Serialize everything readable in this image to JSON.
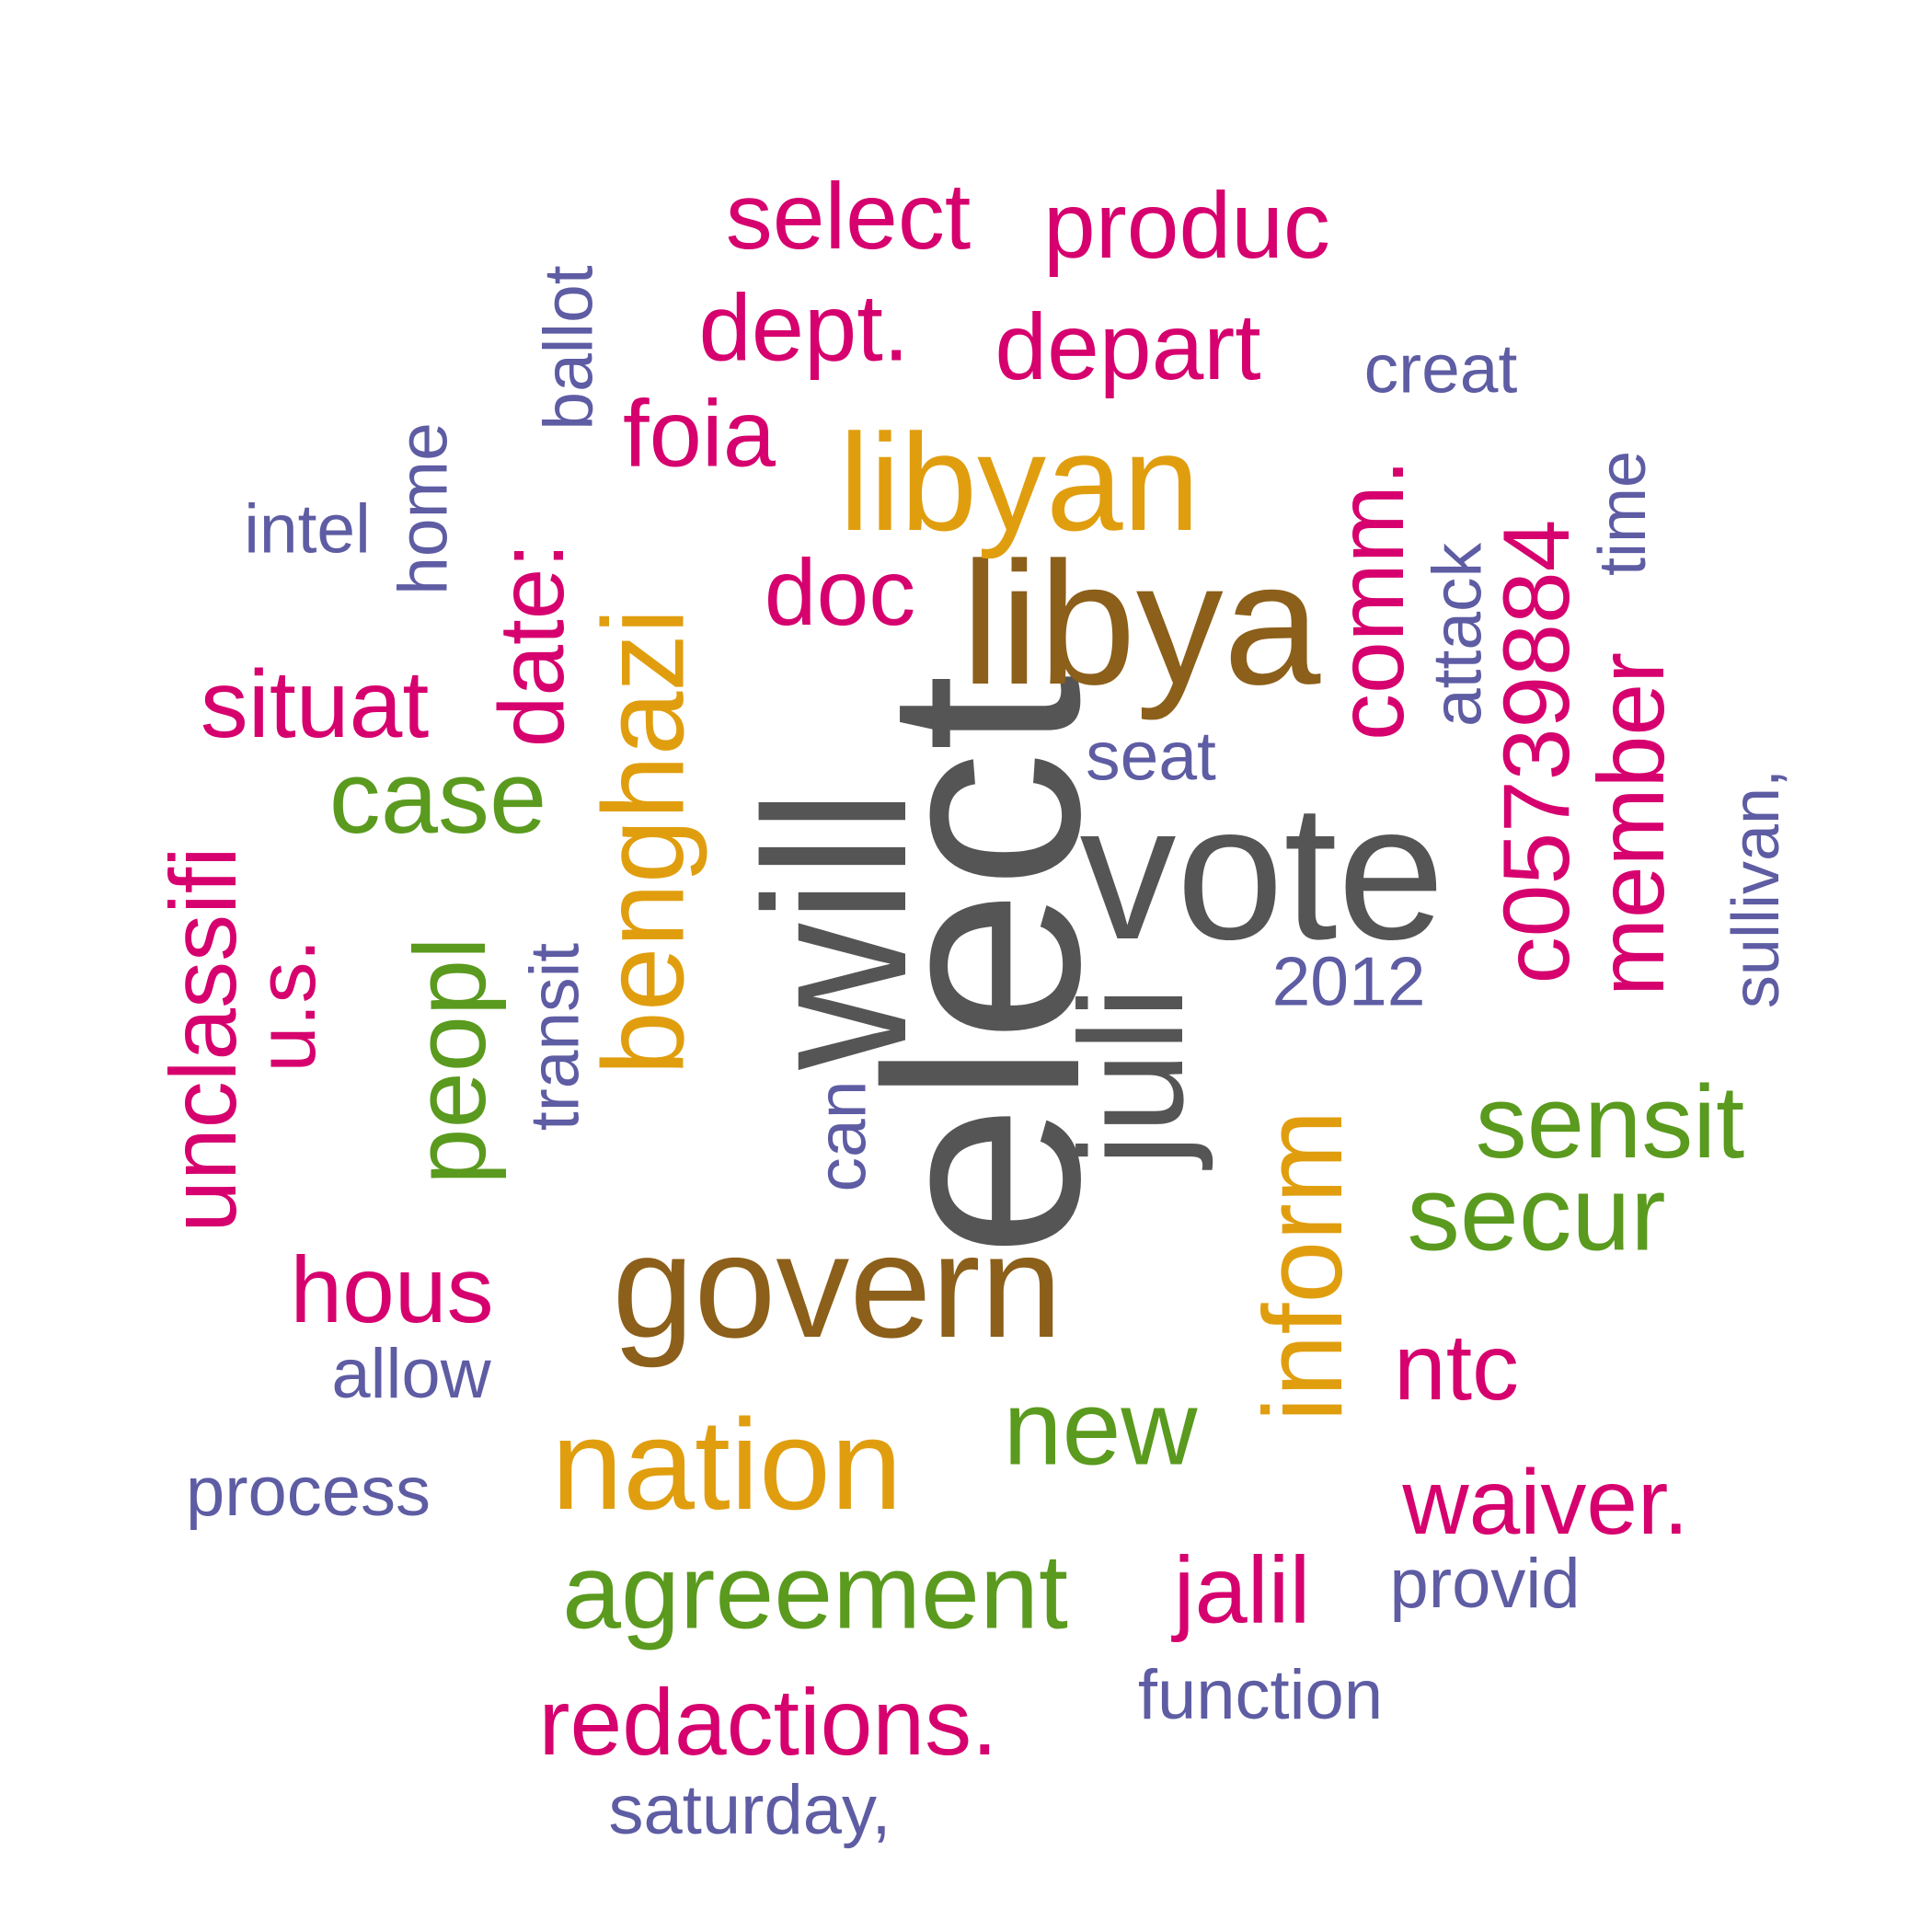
{
  "colors": {
    "dark_gray": "#555555",
    "brown": "#8C5F1A",
    "gold": "#E09E0F",
    "green": "#5A9A1E",
    "magenta": "#D6006E",
    "purple": "#5E5CA3"
  },
  "words": [
    {
      "text": "elect",
      "group": "dark_gray"
    },
    {
      "text": "will",
      "group": "dark_gray"
    },
    {
      "text": "vote",
      "group": "dark_gray"
    },
    {
      "text": "juli",
      "group": "dark_gray"
    },
    {
      "text": "libya",
      "group": "brown"
    },
    {
      "text": "govern",
      "group": "brown"
    },
    {
      "text": "libyan",
      "group": "gold"
    },
    {
      "text": "benghazi",
      "group": "gold"
    },
    {
      "text": "nation",
      "group": "gold"
    },
    {
      "text": "inform",
      "group": "gold"
    },
    {
      "text": "case",
      "group": "green"
    },
    {
      "text": "peopl",
      "group": "green"
    },
    {
      "text": "agreement",
      "group": "green"
    },
    {
      "text": "new",
      "group": "green"
    },
    {
      "text": "sensit",
      "group": "green"
    },
    {
      "text": "secur",
      "group": "green"
    },
    {
      "text": "select",
      "group": "magenta"
    },
    {
      "text": "produc",
      "group": "magenta"
    },
    {
      "text": "dept.",
      "group": "magenta"
    },
    {
      "text": "depart",
      "group": "magenta"
    },
    {
      "text": "foia",
      "group": "magenta"
    },
    {
      "text": "doc",
      "group": "magenta"
    },
    {
      "text": "situat",
      "group": "magenta"
    },
    {
      "text": "date:",
      "group": "magenta"
    },
    {
      "text": "comm.",
      "group": "magenta"
    },
    {
      "text": "c05739884",
      "group": "magenta"
    },
    {
      "text": "member",
      "group": "magenta"
    },
    {
      "text": "unclassifi",
      "group": "magenta"
    },
    {
      "text": "u.s.",
      "group": "magenta"
    },
    {
      "text": "hous",
      "group": "magenta"
    },
    {
      "text": "ntc",
      "group": "magenta"
    },
    {
      "text": "waiver.",
      "group": "magenta"
    },
    {
      "text": "jalil",
      "group": "magenta"
    },
    {
      "text": "redactions.",
      "group": "magenta"
    },
    {
      "text": "ballot",
      "group": "purple"
    },
    {
      "text": "creat",
      "group": "purple"
    },
    {
      "text": "intel",
      "group": "purple"
    },
    {
      "text": "home",
      "group": "purple"
    },
    {
      "text": "attack",
      "group": "purple"
    },
    {
      "text": "time",
      "group": "purple"
    },
    {
      "text": "seat",
      "group": "purple"
    },
    {
      "text": "sullivan,",
      "group": "purple"
    },
    {
      "text": "transit",
      "group": "purple"
    },
    {
      "text": "2012",
      "group": "purple"
    },
    {
      "text": "can",
      "group": "purple"
    },
    {
      "text": "allow",
      "group": "purple"
    },
    {
      "text": "process",
      "group": "purple"
    },
    {
      "text": "provid",
      "group": "purple"
    },
    {
      "text": "function",
      "group": "purple"
    },
    {
      "text": "saturday,",
      "group": "purple"
    }
  ]
}
